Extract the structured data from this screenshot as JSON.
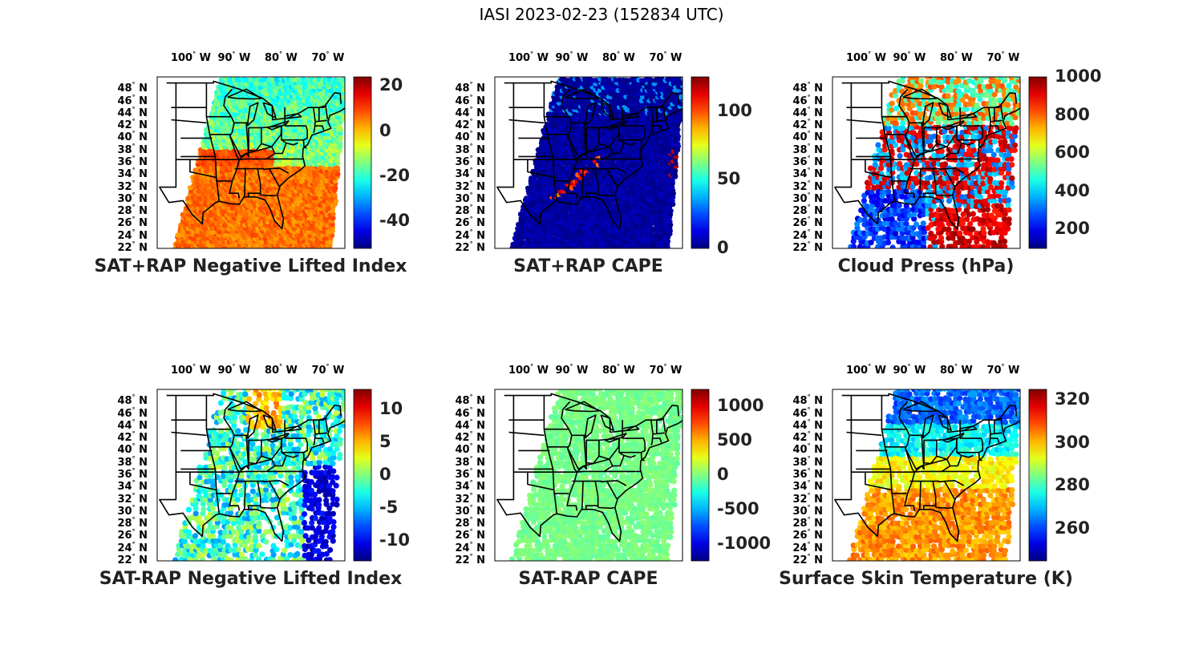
{
  "title": "IASI 2023-02-23 (152834 UTC)",
  "lon_labels": [
    {
      "deg": "100",
      "dir": "W"
    },
    {
      "deg": "90",
      "dir": "W"
    },
    {
      "deg": "80",
      "dir": "W"
    },
    {
      "deg": "70",
      "dir": "W"
    }
  ],
  "lat_labels": [
    {
      "deg": "48",
      "dir": "N"
    },
    {
      "deg": "46",
      "dir": "N"
    },
    {
      "deg": "44",
      "dir": "N"
    },
    {
      "deg": "42",
      "dir": "N"
    },
    {
      "deg": "40",
      "dir": "N"
    },
    {
      "deg": "38",
      "dir": "N"
    },
    {
      "deg": "36",
      "dir": "N"
    },
    {
      "deg": "34",
      "dir": "N"
    },
    {
      "deg": "32",
      "dir": "N"
    },
    {
      "deg": "30",
      "dir": "N"
    },
    {
      "deg": "28",
      "dir": "N"
    },
    {
      "deg": "26",
      "dir": "N"
    },
    {
      "deg": "24",
      "dir": "N"
    },
    {
      "deg": "22",
      "dir": "N"
    }
  ],
  "colormap": "jet",
  "panels": [
    {
      "title": "SAT+RAP Negative Lifted Index",
      "colorbar_ticks": [
        "20",
        "0",
        "-20",
        "-40"
      ],
      "colorbar_tick_values": [
        20,
        0,
        -20,
        -40
      ],
      "colorbar_range": [
        -52,
        24
      ],
      "coverage": "swath",
      "dominant_values": [
        5,
        -15
      ]
    },
    {
      "title": "SAT+RAP CAPE",
      "colorbar_ticks": [
        "100",
        "50",
        "0"
      ],
      "colorbar_tick_values": [
        100,
        50,
        0
      ],
      "colorbar_range": [
        0,
        125
      ],
      "coverage": "swath",
      "dominant_values": [
        0,
        110
      ]
    },
    {
      "title": "Cloud Press (hPa)",
      "colorbar_ticks": [
        "1000",
        "800",
        "600",
        "400",
        "200"
      ],
      "colorbar_tick_values": [
        1000,
        800,
        600,
        400,
        200
      ],
      "colorbar_range": [
        100,
        1000
      ],
      "coverage": "scattered",
      "dominant_values": [
        900,
        250
      ]
    },
    {
      "title": "SAT-RAP Negative Lifted Index",
      "colorbar_ticks": [
        "10",
        "5",
        "0",
        "-5",
        "-10"
      ],
      "colorbar_tick_values": [
        10,
        5,
        0,
        -5,
        -10
      ],
      "colorbar_range": [
        -13,
        13
      ],
      "coverage": "scattered",
      "dominant_values": [
        -4,
        4
      ]
    },
    {
      "title": "SAT-RAP CAPE",
      "colorbar_ticks": [
        "1000",
        "500",
        "0",
        "-500",
        "-1000"
      ],
      "colorbar_tick_values": [
        1000,
        500,
        0,
        -500,
        -1000
      ],
      "colorbar_range": [
        -1250,
        1250
      ],
      "coverage": "scattered",
      "dominant_values": [
        0
      ]
    },
    {
      "title": "Surface Skin Temperature (K)",
      "colorbar_ticks": [
        "320",
        "300",
        "280",
        "260"
      ],
      "colorbar_tick_values": [
        320,
        300,
        280,
        260
      ],
      "colorbar_range": [
        245,
        325
      ],
      "coverage": "scattered",
      "dominant_values": [
        268,
        300
      ]
    }
  ]
}
